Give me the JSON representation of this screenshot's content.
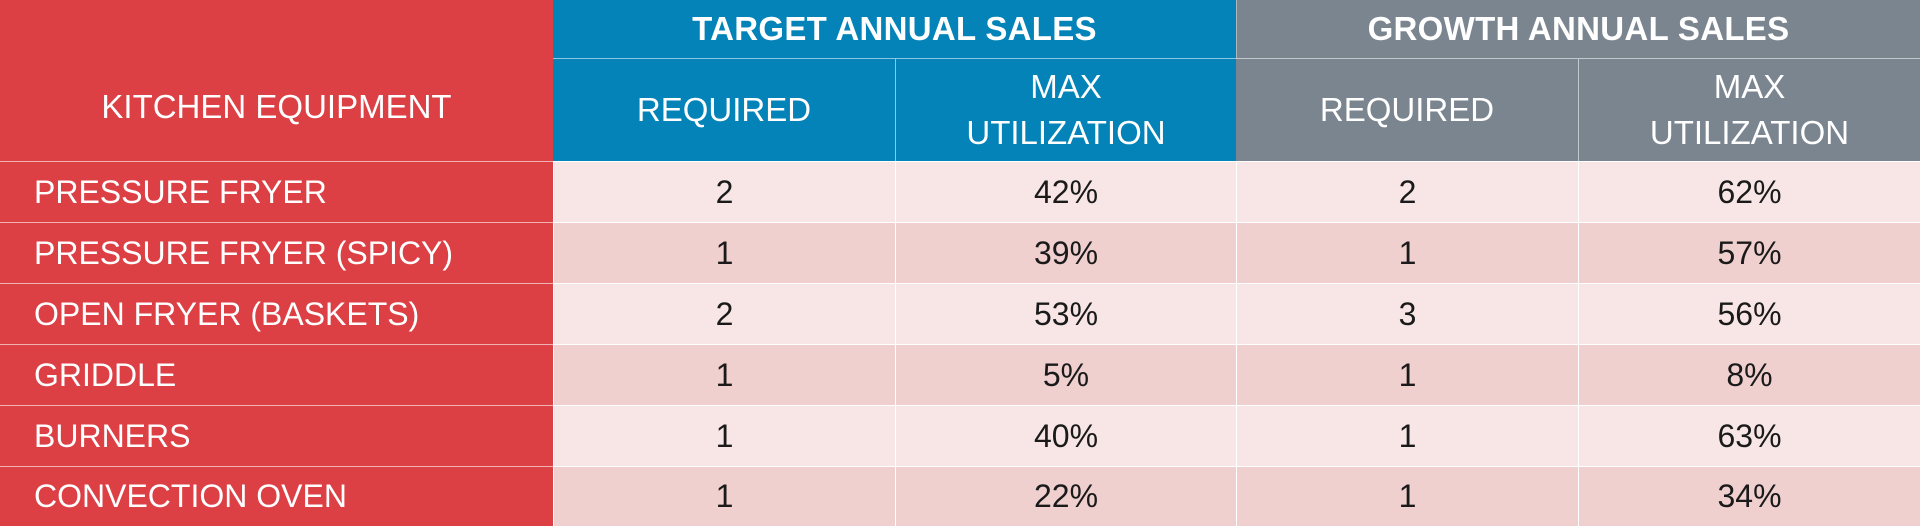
{
  "table": {
    "equipment_header": "KITCHEN EQUIPMENT",
    "groups": [
      {
        "label": "TARGET ANNUAL SALES",
        "color": "#0383b8"
      },
      {
        "label": "GROWTH ANNUAL SALES",
        "color": "#7b8590"
      }
    ],
    "subheaders": {
      "required": "REQUIRED",
      "max_util_line1": "MAX",
      "max_util_line2": "UTILIZATION"
    },
    "rows": [
      {
        "equipment": "PRESSURE FRYER",
        "target_required": "2",
        "target_max": "42%",
        "growth_required": "2",
        "growth_max": "62%"
      },
      {
        "equipment": "PRESSURE FRYER (SPICY)",
        "target_required": "1",
        "target_max": "39%",
        "growth_required": "1",
        "growth_max": "57%"
      },
      {
        "equipment": "OPEN FRYER (BASKETS)",
        "target_required": "2",
        "target_max": "53%",
        "growth_required": "3",
        "growth_max": "56%"
      },
      {
        "equipment": "GRIDDLE",
        "target_required": "1",
        "target_max": "5%",
        "growth_required": "1",
        "growth_max": "8%"
      },
      {
        "equipment": "BURNERS",
        "target_required": "1",
        "target_max": "40%",
        "growth_required": "1",
        "growth_max": "63%"
      },
      {
        "equipment": "CONVECTION OVEN",
        "target_required": "1",
        "target_max": "22%",
        "growth_required": "1",
        "growth_max": "34%"
      }
    ],
    "colors": {
      "header_red": "#dc3f44",
      "target_blue": "#0383b8",
      "growth_grey": "#7b8590",
      "row_light": "#f8e6e6",
      "row_dark": "#f0cfcf"
    }
  }
}
